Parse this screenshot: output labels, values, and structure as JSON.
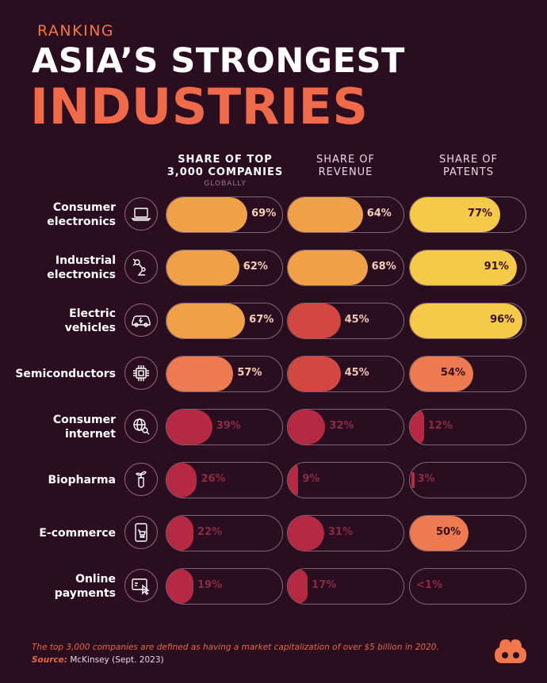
{
  "header": {
    "kicker": "RANKING",
    "title_line1": "ASIA’S STRONGEST",
    "title_line2": "INDUSTRIES"
  },
  "columns": [
    {
      "line1": "SHARE OF TOP",
      "line2": "3,000 COMPANIES",
      "sub": "GLOBALLY"
    },
    {
      "line1": "SHARE OF",
      "line2": "REVENUE",
      "sub": ""
    },
    {
      "line1": "SHARE OF",
      "line2": "PATENTS",
      "sub": ""
    }
  ],
  "rows": [
    {
      "line1": "Consumer",
      "line2": "electronics",
      "icon": "laptop-icon"
    },
    {
      "line1": "Industrial",
      "line2": "electronics",
      "icon": "robot-arm-icon"
    },
    {
      "line1": "Electric",
      "line2": "vehicles",
      "icon": "electric-car-icon"
    },
    {
      "line1": "Semiconductors",
      "line2": "",
      "icon": "chip-icon"
    },
    {
      "line1": "Consumer",
      "line2": "internet",
      "icon": "globe-search-icon"
    },
    {
      "line1": "Biopharma",
      "line2": "",
      "icon": "test-tube-plant-icon"
    },
    {
      "line1": "E-commerce",
      "line2": "",
      "icon": "phone-cart-icon"
    },
    {
      "line1": "Online",
      "line2": "payments",
      "icon": "card-cursor-icon"
    }
  ],
  "chart_data": {
    "type": "bar",
    "categories": [
      "Consumer electronics",
      "Industrial electronics",
      "Electric vehicles",
      "Semiconductors",
      "Consumer internet",
      "Biopharma",
      "E-commerce",
      "Online payments"
    ],
    "ylim": [
      0,
      100
    ],
    "series": [
      {
        "name": "SHARE OF TOP 3,000 COMPANIES GLOBALLY",
        "values": [
          69,
          62,
          67,
          57,
          39,
          26,
          22,
          19
        ],
        "labels": [
          "69%",
          "62%",
          "67%",
          "57%",
          "39%",
          "26%",
          "22%",
          "19%"
        ]
      },
      {
        "name": "SHARE OF REVENUE",
        "values": [
          64,
          68,
          45,
          45,
          32,
          9,
          31,
          17
        ],
        "labels": [
          "64%",
          "68%",
          "45%",
          "45%",
          "32%",
          "9%",
          "31%",
          "17%"
        ]
      },
      {
        "name": "SHARE OF PATENTS",
        "values": [
          77,
          91,
          96,
          54,
          12,
          3,
          50,
          0.5
        ],
        "labels": [
          "77%",
          "91%",
          "96%",
          "54%",
          "12%",
          "3%",
          "50%",
          "<1%"
        ]
      }
    ],
    "colors": {
      "high": "#f5c94a",
      "upper": "#f0a048",
      "mid": "#ed7a50",
      "low": "#d2473f",
      "lowest": "#b72842",
      "label_on_fill": "#3a0f22",
      "label_off_fill": "#8a2c45",
      "background": "#2a0d1f"
    }
  },
  "footer": {
    "note": "The top 3,000 companies are defined as having a market capitalization of over $5 billion in 2020.",
    "source_label": "Source:",
    "source_text": "McKinsey (Sept. 2023)",
    "logo_icon": "visual-capitalist-logo-icon"
  }
}
